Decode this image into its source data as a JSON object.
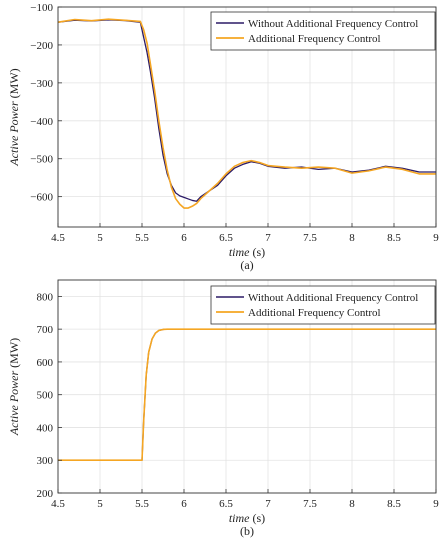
{
  "chart_data": [
    {
      "type": "line",
      "caption": "(a)",
      "xlabel": "time",
      "xunit": " (s)",
      "ylabel": "Active Power",
      "yunit": " (MW)",
      "xlim": [
        4.5,
        9
      ],
      "ylim": [
        -680,
        -100
      ],
      "xticks": [
        4.5,
        5,
        5.5,
        6,
        6.5,
        7,
        7.5,
        8,
        8.5,
        9
      ],
      "xtick_labels": [
        "4.5",
        "5",
        "5.5",
        "6",
        "6.5",
        "7",
        "7.5",
        "8",
        "8.5",
        "9"
      ],
      "yticks": [
        -100,
        -200,
        -300,
        -400,
        -500,
        -600
      ],
      "ytick_labels": [
        "−100",
        "−200",
        "−300",
        "−400",
        "−500",
        "−600"
      ],
      "grid": true,
      "legend_position": "top-right",
      "series": [
        {
          "name": "Without Additional Frequency Control",
          "color": "#2b1a66",
          "x": [
            4.5,
            4.7,
            4.9,
            5.1,
            5.3,
            5.48,
            5.52,
            5.56,
            5.6,
            5.65,
            5.7,
            5.75,
            5.8,
            5.85,
            5.9,
            5.95,
            6.0,
            6.05,
            6.1,
            6.15,
            6.2,
            6.3,
            6.4,
            6.5,
            6.6,
            6.7,
            6.8,
            6.9,
            7.0,
            7.2,
            7.4,
            7.6,
            7.8,
            8.0,
            8.2,
            8.4,
            8.6,
            8.8,
            9.0
          ],
          "y": [
            -140,
            -135,
            -137,
            -134,
            -136,
            -140,
            -180,
            -220,
            -270,
            -340,
            -420,
            -490,
            -540,
            -570,
            -590,
            -598,
            -602,
            -606,
            -610,
            -612,
            -600,
            -585,
            -570,
            -545,
            -525,
            -515,
            -508,
            -512,
            -520,
            -525,
            -522,
            -528,
            -525,
            -535,
            -530,
            -520,
            -525,
            -535,
            -535
          ]
        },
        {
          "name": "Additional Frequency Control",
          "color": "#f5a623",
          "x": [
            4.5,
            4.7,
            4.9,
            5.1,
            5.3,
            5.48,
            5.52,
            5.56,
            5.6,
            5.65,
            5.7,
            5.75,
            5.8,
            5.85,
            5.9,
            5.95,
            6.0,
            6.05,
            6.1,
            6.15,
            6.2,
            6.3,
            6.4,
            6.5,
            6.6,
            6.7,
            6.8,
            6.9,
            7.0,
            7.2,
            7.4,
            7.6,
            7.8,
            8.0,
            8.2,
            8.4,
            8.6,
            8.8,
            9.0
          ],
          "y": [
            -140,
            -133,
            -136,
            -132,
            -135,
            -138,
            -160,
            -195,
            -250,
            -320,
            -400,
            -470,
            -530,
            -575,
            -605,
            -620,
            -630,
            -630,
            -625,
            -618,
            -605,
            -585,
            -565,
            -540,
            -520,
            -510,
            -505,
            -510,
            -518,
            -522,
            -525,
            -522,
            -525,
            -538,
            -532,
            -522,
            -528,
            -540,
            -540
          ]
        }
      ]
    },
    {
      "type": "line",
      "caption": "(b)",
      "xlabel": "time",
      "xunit": " (s)",
      "ylabel": "Active Power",
      "yunit": " (MW)",
      "xlim": [
        4.5,
        9
      ],
      "ylim": [
        200,
        850
      ],
      "xticks": [
        4.5,
        5,
        5.5,
        6,
        6.5,
        7,
        7.5,
        8,
        8.5,
        9
      ],
      "xtick_labels": [
        "4.5",
        "5",
        "5.5",
        "6",
        "6.5",
        "7",
        "7.5",
        "8",
        "8.5",
        "9"
      ],
      "yticks": [
        200,
        300,
        400,
        500,
        600,
        700,
        800
      ],
      "ytick_labels": [
        "200",
        "300",
        "400",
        "500",
        "600",
        "700",
        "800"
      ],
      "grid": true,
      "legend_position": "top-right",
      "series": [
        {
          "name": "Without Additional Frequency Control",
          "color": "#2b1a66",
          "x": [
            4.5,
            5.0,
            5.5,
            5.52,
            5.55,
            5.58,
            5.62,
            5.66,
            5.7,
            5.75,
            5.8,
            6.0,
            7.0,
            8.0,
            9.0
          ],
          "y": [
            300,
            300,
            300,
            420,
            560,
            630,
            670,
            688,
            696,
            699,
            700,
            700,
            700,
            700,
            700
          ]
        },
        {
          "name": "Additional Frequency Control",
          "color": "#f5a623",
          "x": [
            4.5,
            5.0,
            5.5,
            5.52,
            5.55,
            5.58,
            5.62,
            5.66,
            5.7,
            5.75,
            5.8,
            6.0,
            7.0,
            8.0,
            9.0
          ],
          "y": [
            300,
            300,
            300,
            420,
            560,
            630,
            670,
            688,
            696,
            699,
            700,
            700,
            700,
            700,
            700
          ]
        }
      ]
    }
  ]
}
